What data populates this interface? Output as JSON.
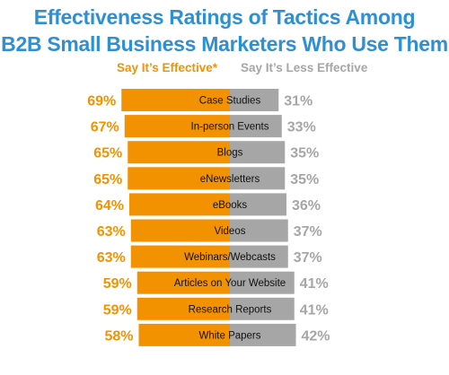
{
  "title_line1": "Effectiveness Ratings of Tactics Among",
  "title_line2": "B2B Small Business Marketers Who Use Them",
  "chart_data": {
    "type": "bar",
    "orientation": "horizontal-stacked",
    "categories": [
      "Case Studies",
      "In-person Events",
      "Blogs",
      "eNewsletters",
      "eBooks",
      "Videos",
      "Webinars/Webcasts",
      "Articles on Your Website",
      "Research Reports",
      "White Papers"
    ],
    "series": [
      {
        "name": "Say It's Effective*",
        "values": [
          69,
          67,
          65,
          65,
          64,
          63,
          63,
          59,
          59,
          58
        ],
        "labels": [
          "69%",
          "67%",
          "65%",
          "65%",
          "64%",
          "63%",
          "63%",
          "59%",
          "59%",
          "58%"
        ],
        "color": "#f39200"
      },
      {
        "name": "Say It's Less Effective",
        "values": [
          31,
          33,
          35,
          35,
          36,
          37,
          37,
          41,
          41,
          42
        ],
        "labels": [
          "31%",
          "33%",
          "35%",
          "35%",
          "36%",
          "37%",
          "37%",
          "41%",
          "41%",
          "42%"
        ],
        "color": "#a6a6a6"
      }
    ],
    "legend": [
      "Say It’s Effective*",
      "Say It’s Less Effective"
    ],
    "label_color_effective": "#f39200",
    "label_color_less": "#a6a6a6",
    "xlim": [
      0,
      100
    ]
  }
}
